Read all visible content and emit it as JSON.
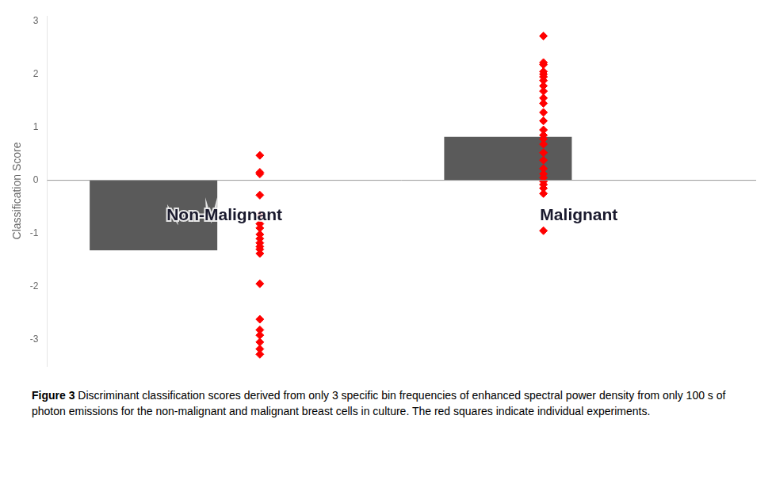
{
  "chart_data": {
    "type": "bar",
    "categories": [
      "Non-Malignant",
      "Malignant"
    ],
    "ylabel": "Classification Score",
    "ylim": [
      -3.5,
      3.1
    ],
    "yticks": [
      -3,
      -2,
      -1,
      0,
      1,
      2,
      3
    ],
    "grid": false,
    "tick_labels": "y",
    "series": [
      {
        "type": "bar",
        "color": "#5a5a5a",
        "values": [
          -1.32,
          0.82
        ]
      },
      {
        "type": "scatter",
        "marker": "diamond",
        "color": "#ff0000",
        "values": [
          [
            0.47,
            0.15,
            0.12,
            -0.28,
            -0.65,
            -0.82,
            -0.9,
            -1.02,
            -1.1,
            -1.18,
            -1.25,
            -1.3,
            -1.38,
            -1.95,
            -2.62,
            -2.82,
            -2.92,
            -3.05,
            -3.18,
            -3.28
          ],
          [
            2.72,
            2.22,
            2.18,
            2.05,
            2.0,
            1.95,
            1.88,
            1.78,
            1.68,
            1.55,
            1.45,
            1.28,
            1.12,
            0.95,
            0.85,
            0.78,
            0.68,
            0.52,
            0.38,
            0.22,
            0.12,
            0.05,
            -0.02,
            -0.08,
            -0.15,
            -0.25,
            -0.95
          ]
        ]
      }
    ],
    "annotations": [
      "Figure 3",
      "Discriminant classification scores derived from only 3 specific bin frequencies of enhanced spectral power density from only 100 s of photon emissions for the non-malignant and malignant breast cells in culture. The red squares indicate individual experiments."
    ]
  }
}
